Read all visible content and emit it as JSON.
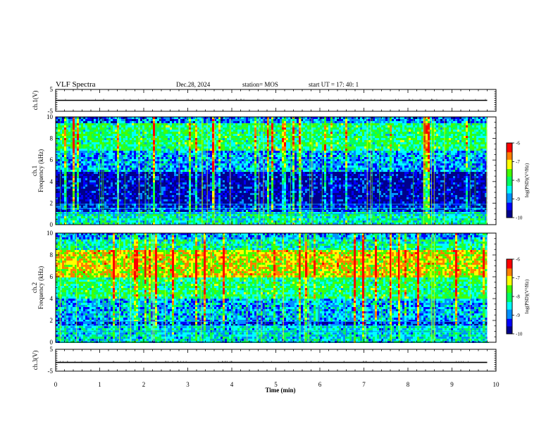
{
  "header": {
    "title": "VLF Spectra",
    "date": "Dec.28, 2024",
    "station": "station= MOS",
    "start": "start  UT =   17: 40: 1"
  },
  "chart_data": [
    {
      "type": "line",
      "panel": "ch1-waveform",
      "ylabel": "ch.1(V)",
      "ylim": [
        -5,
        5
      ],
      "y_tick_labels": [
        "5",
        "-5"
      ],
      "x": [
        0,
        9.8
      ],
      "values": [
        0,
        0
      ],
      "xlim": [
        0,
        10
      ]
    },
    {
      "type": "heatmap",
      "panel": "ch1-spectrogram",
      "ylabel_line1": "ch.1",
      "ylabel_line2": "Frequency (kHz)",
      "ylim": [
        0,
        10
      ],
      "y_tick_labels": [
        "0",
        "2",
        "4",
        "6",
        "8",
        "10"
      ],
      "xlim": [
        0,
        10
      ],
      "data_end_min": 9.8,
      "intensity_profile": "bands near 7-9.5 kHz and below 1.5 kHz, quiet 2-5 kHz, frequent vertical spikes",
      "colorbar": {
        "label": "log(PSD)(V²/Hz)",
        "range": [
          -10,
          -6
        ],
        "tick_labels": [
          "-6",
          "-7",
          "-8",
          "-9",
          "-10"
        ]
      }
    },
    {
      "type": "heatmap",
      "panel": "ch2-spectrogram",
      "ylabel_line1": "ch.2",
      "ylabel_line2": "Frequency (kHz)",
      "ylim": [
        0,
        10
      ],
      "y_tick_labels": [
        "0",
        "2",
        "4",
        "6",
        "8",
        "10"
      ],
      "xlim": [
        0,
        10
      ],
      "data_end_min": 9.8,
      "intensity_profile": "strong red band 6-8.5 kHz, green/cyan fill down to 2 kHz, lines below 2 kHz",
      "colorbar": {
        "label": "log(PSD)(V²/Hz)",
        "range": [
          -10,
          -6
        ],
        "tick_labels": [
          "-6",
          "-7",
          "-8",
          "-9",
          "-10"
        ]
      }
    },
    {
      "type": "line",
      "panel": "ch3-waveform",
      "ylabel": "ch.3(V)",
      "ylim": [
        -5,
        5
      ],
      "y_tick_labels": [
        "5",
        "-5"
      ],
      "x": [
        0,
        9.8
      ],
      "values": [
        -1,
        -1
      ],
      "xlim": [
        0,
        10
      ]
    }
  ],
  "x_axis": {
    "label": "Time (min)",
    "tick_labels": [
      "0",
      "1",
      "2",
      "3",
      "4",
      "5",
      "6",
      "7",
      "8",
      "9",
      "10"
    ]
  },
  "colormap": [
    "#00008c",
    "#0000ff",
    "#0090ff",
    "#00ffff",
    "#00ff60",
    "#40ff00",
    "#ffff00",
    "#ff8000",
    "#ff0000",
    "#ffffff"
  ]
}
